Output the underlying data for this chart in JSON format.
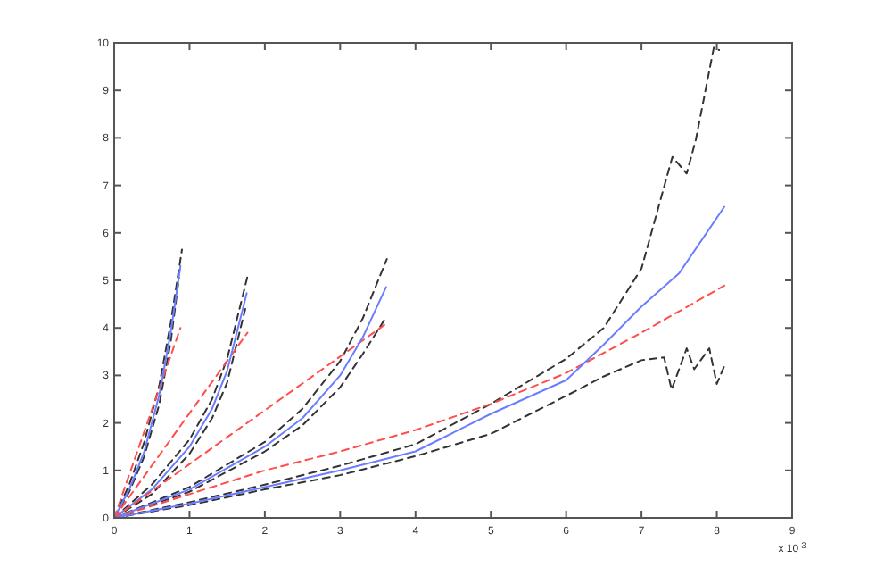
{
  "chart_data": {
    "type": "line",
    "xlim": [
      0,
      9
    ],
    "xticks": [
      0,
      1,
      2,
      3,
      4,
      5,
      6,
      7,
      8,
      9
    ],
    "ylim": [
      0,
      10
    ],
    "yticks": [
      0,
      1,
      2,
      3,
      4,
      5,
      6,
      7,
      8,
      9,
      10
    ],
    "grid": false,
    "annotations": [
      "x 10$^{-3}$"
    ],
    "series": [
      {
        "color": "#333333",
        "line_style": "dashed",
        "x": [
          0,
          0.2,
          0.4,
          0.6,
          0.75,
          0.9
        ],
        "values": [
          0,
          0.7,
          1.6,
          2.8,
          4.1,
          5.65
        ]
      },
      {
        "color": "#333333",
        "line_style": "dashed",
        "x": [
          0,
          0.2,
          0.4,
          0.6,
          0.75,
          0.86
        ],
        "values": [
          0,
          0.55,
          1.3,
          2.4,
          3.7,
          5.05
        ]
      },
      {
        "color": "#ff4d4d",
        "line_style": "dashed",
        "x": [
          0,
          0.88
        ],
        "values": [
          0,
          4.0
        ]
      },
      {
        "color": "#6a7dff",
        "line_style": "solid",
        "x": [
          0,
          0.2,
          0.4,
          0.6,
          0.75,
          0.88
        ],
        "values": [
          0,
          0.6,
          1.4,
          2.6,
          3.9,
          5.3
        ]
      },
      {
        "color": "#333333",
        "line_style": "dashed",
        "x": [
          0,
          0.5,
          1,
          1.3,
          1.5,
          1.78
        ],
        "values": [
          0,
          0.7,
          1.65,
          2.5,
          3.35,
          5.15
        ]
      },
      {
        "color": "#333333",
        "line_style": "dashed",
        "x": [
          0,
          0.5,
          1,
          1.3,
          1.5,
          1.74
        ],
        "values": [
          0,
          0.5,
          1.35,
          2.1,
          2.85,
          4.4
        ]
      },
      {
        "color": "#ff4d4d",
        "line_style": "dashed",
        "x": [
          0,
          1.77
        ],
        "values": [
          0,
          3.9
        ]
      },
      {
        "color": "#6a7dff",
        "line_style": "solid",
        "x": [
          0,
          0.5,
          1,
          1.3,
          1.5,
          1.76
        ],
        "values": [
          0,
          0.6,
          1.5,
          2.3,
          3.1,
          4.73
        ]
      },
      {
        "color": "#333333",
        "line_style": "dashed",
        "x": [
          0,
          1,
          2,
          2.5,
          3,
          3.3,
          3.62
        ],
        "values": [
          0,
          0.65,
          1.6,
          2.3,
          3.3,
          4.2,
          5.45
        ]
      },
      {
        "color": "#333333",
        "line_style": "dashed",
        "x": [
          0,
          1,
          2,
          2.5,
          3,
          3.3,
          3.62
        ],
        "values": [
          0,
          0.55,
          1.4,
          1.95,
          2.75,
          3.45,
          4.25
        ]
      },
      {
        "color": "#ff4d4d",
        "line_style": "dashed",
        "x": [
          0,
          3.62
        ],
        "values": [
          0,
          4.1
        ]
      },
      {
        "color": "#6a7dff",
        "line_style": "solid",
        "x": [
          0,
          1,
          2,
          2.5,
          3,
          3.3,
          3.61
        ],
        "values": [
          0,
          0.6,
          1.5,
          2.1,
          3.0,
          3.8,
          4.86
        ]
      },
      {
        "color": "#333333",
        "line_style": "dashed",
        "x": [
          0,
          1,
          2,
          3,
          4,
          5,
          6,
          6.5,
          7,
          7.41,
          7.6,
          7.72,
          7.96,
          8.03
        ],
        "values": [
          0,
          0.33,
          0.7,
          1.1,
          1.55,
          2.4,
          3.35,
          4.0,
          5.25,
          7.6,
          7.25,
          7.95,
          9.9,
          9.85
        ]
      },
      {
        "color": "#333333",
        "line_style": "dashed",
        "x": [
          0,
          1,
          2,
          3,
          4,
          5,
          6,
          6.5,
          7,
          7.3,
          7.4,
          7.6,
          7.7,
          7.9,
          8.0,
          8.1
        ],
        "values": [
          0,
          0.27,
          0.6,
          0.9,
          1.3,
          1.77,
          2.57,
          2.98,
          3.32,
          3.38,
          2.7,
          3.57,
          3.13,
          3.57,
          2.82,
          3.2
        ]
      },
      {
        "color": "#ff4d4d",
        "line_style": "dashed",
        "x": [
          0,
          1,
          2,
          3,
          4,
          5,
          6,
          7,
          8.1
        ],
        "values": [
          0,
          0.5,
          1.0,
          1.4,
          1.85,
          2.4,
          3.05,
          3.9,
          4.89
        ]
      },
      {
        "color": "#6a7dff",
        "line_style": "solid",
        "x": [
          0,
          1,
          2,
          3,
          4,
          5,
          6,
          6.5,
          7,
          7.5,
          8.1
        ],
        "values": [
          0,
          0.3,
          0.65,
          1.0,
          1.4,
          2.19,
          2.9,
          3.65,
          4.45,
          5.15,
          6.55
        ]
      }
    ]
  }
}
